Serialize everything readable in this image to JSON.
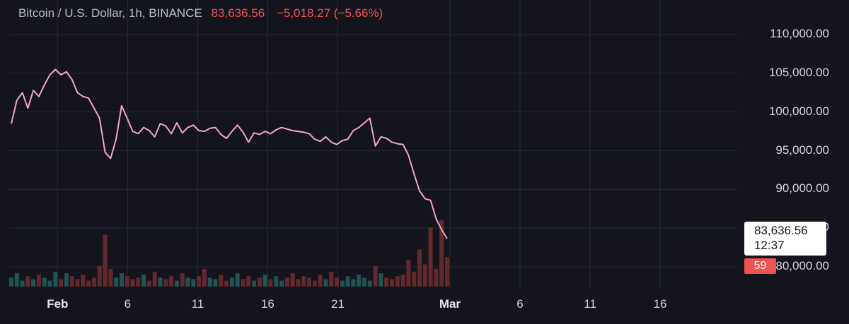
{
  "header": {
    "symbol": "Bitcoin / U.S. Dollar, 1h, BINANCE",
    "price": "83,636.56",
    "change": "−5,018.27 (−5.66%)"
  },
  "price_tag": {
    "price": "83,636.56",
    "countdown": "12:37"
  },
  "volume_badge": "59",
  "colors": {
    "background": "#14141c",
    "line": "#f2a6c6",
    "down": "#f0505a",
    "volume_up": "#1f5c58",
    "volume_down": "#6b2a30",
    "grid": "#272a35"
  },
  "chart_data": {
    "type": "line",
    "title": "",
    "series": [
      {
        "values": [
          98500,
          101500,
          102500,
          100500,
          102800,
          102000,
          103500,
          104800,
          105500,
          104800,
          105200,
          104200,
          102500,
          102000,
          101800,
          100500,
          99200,
          94800,
          94000,
          96500,
          100800,
          99200,
          97500,
          97200,
          98000,
          97600,
          96800,
          98500,
          98200,
          97200,
          98600,
          97300,
          98000,
          98300,
          97600,
          97500,
          97900,
          98000,
          97100,
          96600,
          97500,
          98300,
          97400,
          96100,
          97300,
          97100,
          97500,
          97200,
          97700,
          98000,
          97800,
          97600,
          97500,
          97400,
          97200,
          96500,
          96200,
          96800,
          96100,
          95800,
          96300,
          96500,
          97600,
          98000,
          98600,
          99200,
          95600,
          96800,
          96600,
          96100,
          95900,
          95800,
          94400,
          92000,
          89800,
          88800,
          88600,
          86200,
          84800,
          83636.56
        ]
      }
    ],
    "volume": [
      6,
      9,
      4,
      7,
      5,
      8,
      6,
      4,
      10,
      5,
      9,
      7,
      5,
      8,
      4,
      6,
      14,
      35,
      12,
      6,
      9,
      7,
      5,
      6,
      8,
      4,
      10,
      6,
      5,
      7,
      4,
      9,
      6,
      5,
      7,
      12,
      6,
      5,
      8,
      4,
      6,
      9,
      5,
      7,
      4,
      6,
      8,
      5,
      7,
      4,
      6,
      9,
      5,
      7,
      6,
      4,
      8,
      5,
      10,
      6,
      4,
      7,
      5,
      8,
      6,
      4,
      14,
      9,
      6,
      5,
      7,
      8,
      18,
      10,
      25,
      15,
      40,
      12,
      45,
      20
    ],
    "x_ticks": [
      {
        "label": "Feb",
        "x": 0.0,
        "month": true
      },
      {
        "label": "6",
        "x": 5
      },
      {
        "label": "11",
        "x": 10
      },
      {
        "label": "16",
        "x": 15
      },
      {
        "label": "21",
        "x": 20
      },
      {
        "label": "Mar",
        "x": 28,
        "month": true
      },
      {
        "label": "6",
        "x": 33
      },
      {
        "label": "11",
        "x": 38
      },
      {
        "label": "16",
        "x": 43
      }
    ],
    "y_ticks": [
      "110,000.00",
      "105,000.00",
      "100,000.00",
      "95,000.00",
      "90,000.00",
      "85,000.00",
      "80,000.00"
    ],
    "y_tick_values": [
      110000,
      105000,
      100000,
      95000,
      90000,
      85000,
      80000
    ],
    "x_range": [
      -3.5,
      48.5
    ],
    "ylim": [
      77900,
      112100
    ],
    "grid": true
  }
}
